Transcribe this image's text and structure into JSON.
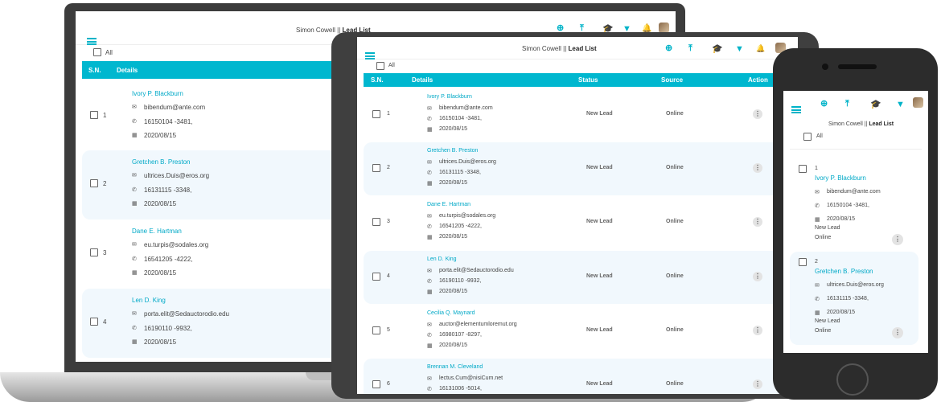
{
  "app": {
    "breadcrumb_user": "Simon Cowell ||",
    "breadcrumb_page": "Lead List",
    "select_all_label": "All"
  },
  "table": {
    "col_sn": "S.N.",
    "col_details": "Details",
    "col_status": "Status",
    "col_source": "Source",
    "col_action": "Action"
  },
  "leads": [
    {
      "sn": "1",
      "name": "Ivory P. Blackburn",
      "email": "bibendum@ante.com",
      "phone": "16150104 -3481,",
      "date": "2020/08/15",
      "status": "New Lead",
      "source": "Online"
    },
    {
      "sn": "2",
      "name": "Gretchen B. Preston",
      "email": "ultrices.Duis@eros.org",
      "phone": "16131115 -3348,",
      "date": "2020/08/15",
      "status": "New Lead",
      "source": "Online"
    },
    {
      "sn": "3",
      "name": "Dane E. Hartman",
      "email": "eu.turpis@sodales.org",
      "phone": "16541205 -4222,",
      "date": "2020/08/15",
      "status": "New Lead",
      "source": "Online"
    },
    {
      "sn": "4",
      "name": "Len D. King",
      "email": "porta.elit@Sedauctorodio.edu",
      "phone": "16190110 -9932,",
      "date": "2020/08/15",
      "status": "New Lead",
      "source": "Online"
    },
    {
      "sn": "5",
      "name": "Cecilia Q. Maynard",
      "email": "auctor@elementumloremut.org",
      "phone": "16980107 -8297,",
      "date": "2020/08/15",
      "status": "New Lead",
      "source": "Online"
    },
    {
      "sn": "6",
      "name": "Brennan M. Cleveland",
      "email": "lectus.Cum@nisiCum.net",
      "phone": "16131006 -5014,",
      "date": "",
      "status": "New Lead",
      "source": "Online"
    }
  ],
  "icons": {
    "menu": "hamburger-icon",
    "add": "plus-circle-icon",
    "upload": "upload-icon",
    "cap": "graduation-cap-icon",
    "filter": "filter-icon",
    "bell": "bell-icon",
    "email": "envelope-icon",
    "phone": "phone-icon",
    "date": "calendar-icon",
    "more": "kebab-menu-icon"
  },
  "colors": {
    "accent": "#00b7cf",
    "row_alt": "#f1f8fd"
  }
}
